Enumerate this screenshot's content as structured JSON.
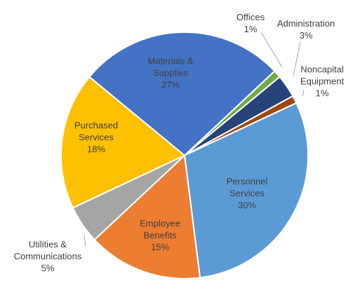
{
  "chart_data": {
    "type": "pie",
    "categories": [
      "Offices",
      "Administration",
      "Noncapital Equipment",
      "Personnel Services",
      "Employee Benefits",
      "Utilities & Communications",
      "Purchased Services",
      "Materials & Supplies"
    ],
    "values": [
      1,
      3,
      1,
      30,
      15,
      5,
      18,
      27
    ],
    "value_labels": [
      "1%",
      "3%",
      "1%",
      "30%",
      "15%",
      "5%",
      "18%",
      "27%"
    ],
    "colors": [
      "#70ad47",
      "#264478",
      "#9e480e",
      "#5b9bd5",
      "#ed7d31",
      "#a5a5a5",
      "#ffc000",
      "#4472c4"
    ]
  }
}
